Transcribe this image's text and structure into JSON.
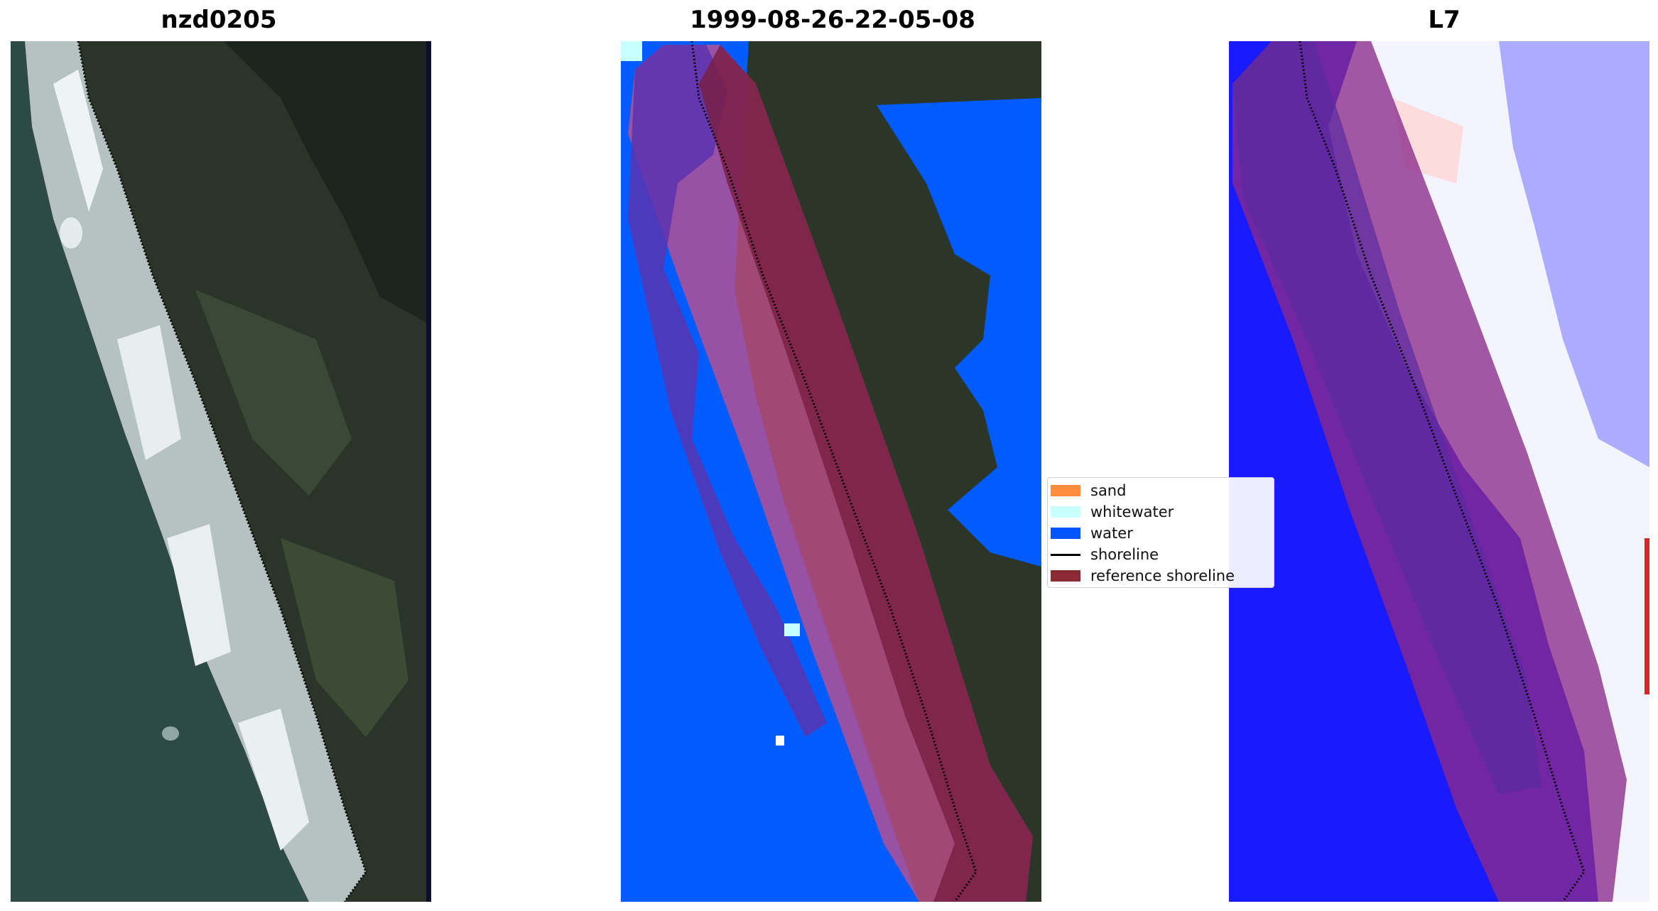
{
  "panels": [
    {
      "title": "nzd0205",
      "kind": "rgb-image"
    },
    {
      "title": "1999-08-26-22-05-08",
      "kind": "classified-image"
    },
    {
      "title": "L7",
      "kind": "index-image"
    }
  ],
  "legend": {
    "items": [
      {
        "label": "sand",
        "color": "#ff8c3c",
        "type": "patch"
      },
      {
        "label": "whitewater",
        "color": "#c8ffff",
        "type": "patch"
      },
      {
        "label": "water",
        "color": "#0055ff",
        "type": "patch"
      },
      {
        "label": "shoreline",
        "color": "#000000",
        "type": "line"
      },
      {
        "label": "reference shoreline",
        "color": "#8b2a33",
        "type": "patch"
      }
    ]
  },
  "colors": {
    "sea": "#2d4a47",
    "land_dark": "#252d23",
    "land_mid": "#3a4736",
    "surf": "#dfe6e8",
    "water_class": "#005cff",
    "buffer_overlay": "#9b2f5f",
    "index_blue": "#1a1aff",
    "index_white": "#f4f4ff"
  }
}
